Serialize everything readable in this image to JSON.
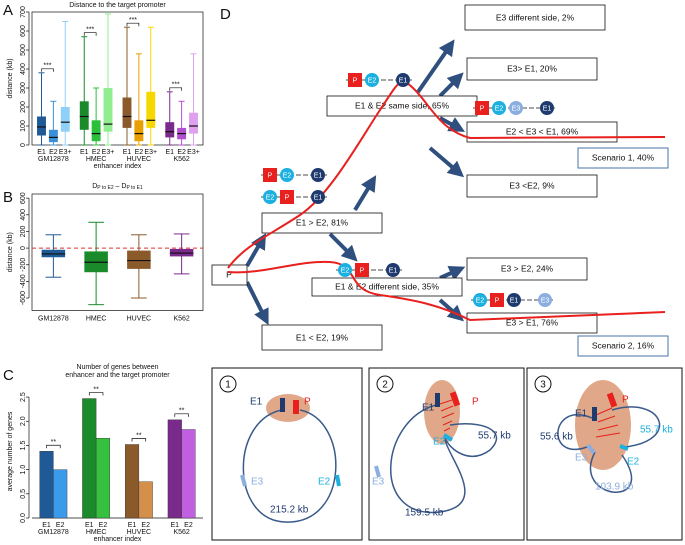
{
  "panel_labels": [
    "A",
    "B",
    "C",
    "D",
    "E"
  ],
  "chart_data": [
    {
      "type": "box",
      "title": "Distance to the target promoter",
      "ylabel": "distance (kb)",
      "xlabel": "enhancer index",
      "ylim": [
        0,
        700
      ],
      "yticks": [
        0,
        100,
        200,
        300,
        400,
        500,
        600,
        700
      ],
      "frame": true,
      "groups": [
        "GM12878",
        "HMEC",
        "HUVEC",
        "K562"
      ],
      "categories": [
        "E1",
        "E2",
        "E3+"
      ],
      "significance_labels": [
        "***",
        "***",
        "***",
        "***"
      ],
      "boxes": [
        [
          {
            "min": 0,
            "q1": 50,
            "median": 95,
            "q3": 150,
            "max": 380,
            "color": "#1f5a96"
          },
          {
            "min": 0,
            "q1": 15,
            "median": 40,
            "q3": 80,
            "max": 230,
            "color": "#3b8fd8"
          },
          {
            "min": 0,
            "q1": 70,
            "median": 120,
            "q3": 200,
            "max": 650,
            "color": "#8fd0f8"
          }
        ],
        [
          {
            "min": 0,
            "q1": 80,
            "median": 150,
            "q3": 230,
            "max": 570,
            "color": "#1a8a2a"
          },
          {
            "min": 0,
            "q1": 20,
            "median": 60,
            "q3": 130,
            "max": 300,
            "color": "#2ac03a"
          },
          {
            "min": 0,
            "q1": 70,
            "median": 110,
            "q3": 300,
            "max": 690,
            "color": "#90ee90"
          }
        ],
        [
          {
            "min": 0,
            "q1": 90,
            "median": 150,
            "q3": 250,
            "max": 620,
            "color": "#8b5a2b"
          },
          {
            "min": 0,
            "q1": 20,
            "median": 60,
            "q3": 130,
            "max": 480,
            "color": "#e8a000"
          },
          {
            "min": 0,
            "q1": 90,
            "median": 130,
            "q3": 280,
            "max": 620,
            "color": "#f5d800"
          }
        ],
        [
          {
            "min": 0,
            "q1": 40,
            "median": 70,
            "q3": 120,
            "max": 280,
            "color": "#7a2a8a"
          },
          {
            "min": 0,
            "q1": 30,
            "median": 60,
            "q3": 90,
            "max": 230,
            "color": "#b050d0"
          },
          {
            "min": 0,
            "q1": 60,
            "median": 100,
            "q3": 170,
            "max": 480,
            "color": "#e0a0f0"
          }
        ]
      ]
    },
    {
      "type": "box",
      "title_parts": [
        "D",
        "P to E2",
        " – D",
        "P to E1"
      ],
      "ylabel": "distance (kb)",
      "ylim": [
        -750,
        650
      ],
      "yticks": [
        -600,
        -400,
        -200,
        0,
        200,
        400,
        600
      ],
      "frame": true,
      "categories": [
        "GM12878",
        "HMEC",
        "HUVEC",
        "K562"
      ],
      "reference_line": {
        "value": 0,
        "color": "#e03030",
        "dashed": true
      },
      "boxes": [
        {
          "min": -350,
          "q1": -110,
          "median": -70,
          "q3": -20,
          "max": 160,
          "color": "#1f5a96"
        },
        {
          "min": -680,
          "q1": -290,
          "median": -170,
          "q3": -40,
          "max": 310,
          "color": "#1a8a2a"
        },
        {
          "min": -600,
          "q1": -250,
          "median": -150,
          "q3": -30,
          "max": 160,
          "color": "#8b5a2b"
        },
        {
          "min": -310,
          "q1": -100,
          "median": -60,
          "q3": -10,
          "max": 170,
          "color": "#7a2a8a"
        }
      ]
    },
    {
      "type": "bar",
      "title_lines": [
        "Number of genes between",
        "enhancer and the target promoter"
      ],
      "ylabel": "average number of genes",
      "xlabel": "enhancer index",
      "ylim": [
        0,
        2.75
      ],
      "yticks": [
        {
          "value": 0,
          "label": "0.0"
        },
        {
          "value": 0.5,
          "label": "0.5"
        },
        {
          "value": 1,
          "label": "1.0"
        },
        {
          "value": 1.5,
          "label": "1.5"
        },
        {
          "value": 2,
          "label": "2.0"
        },
        {
          "value": 2.5,
          "label": "2.5"
        }
      ],
      "groups": [
        "GM12878",
        "HMEC",
        "HUVEC",
        "K562"
      ],
      "categories": [
        "E1",
        "E2"
      ],
      "significance_labels": [
        "**",
        "**",
        "**",
        "**"
      ],
      "values": [
        [
          1.38,
          1.0
        ],
        [
          2.47,
          1.65
        ],
        [
          1.52,
          0.75
        ],
        [
          2.03,
          1.83
        ]
      ],
      "colors": [
        [
          "#1f5a96",
          "#3b9bea"
        ],
        [
          "#1a8a2a",
          "#35c040"
        ],
        [
          "#8b5a2b",
          "#d4904a"
        ],
        [
          "#7a2a8a",
          "#c060e0"
        ]
      ]
    }
  ],
  "diagram_d": {
    "boxes": [
      "E3 different side, 2%",
      "E3> E1, 20%",
      "E1 & E2 same side, 65%",
      "E2 < E3 < E1, 69%",
      "Scenario  1, 40%",
      "E3 <E2, 9%",
      "E1 > E2, 81%",
      "P",
      "E1 & E2 different side, 35%",
      "E3 > E2, 24%",
      "E3 > E1, 76%",
      "Scenario 2, 16%",
      "E1 < E2, 19%"
    ],
    "icons": [
      [
        "P",
        "E2",
        "E1"
      ],
      [
        "P",
        "E2",
        "E3",
        "E1"
      ],
      [
        "P",
        "E2",
        "E1"
      ],
      [
        "E2",
        "P",
        "E1"
      ],
      [
        "E2",
        "P",
        "E1"
      ],
      [
        "E2",
        "P",
        "E1",
        "E3"
      ]
    ]
  },
  "diagram_e": {
    "panels": [
      {
        "number": "1",
        "labels": [
          "E1",
          "P",
          "E3",
          "E2",
          "215.2 kb"
        ]
      },
      {
        "number": "2",
        "labels": [
          "E1",
          "P",
          "E2",
          "55.7 kb",
          "E3",
          "159.5 kb"
        ]
      },
      {
        "number": "3",
        "labels": [
          "E1",
          "P",
          "55.6 kb",
          "55.7 kb",
          "E3",
          "E2",
          "103.9 kb"
        ]
      }
    ]
  }
}
